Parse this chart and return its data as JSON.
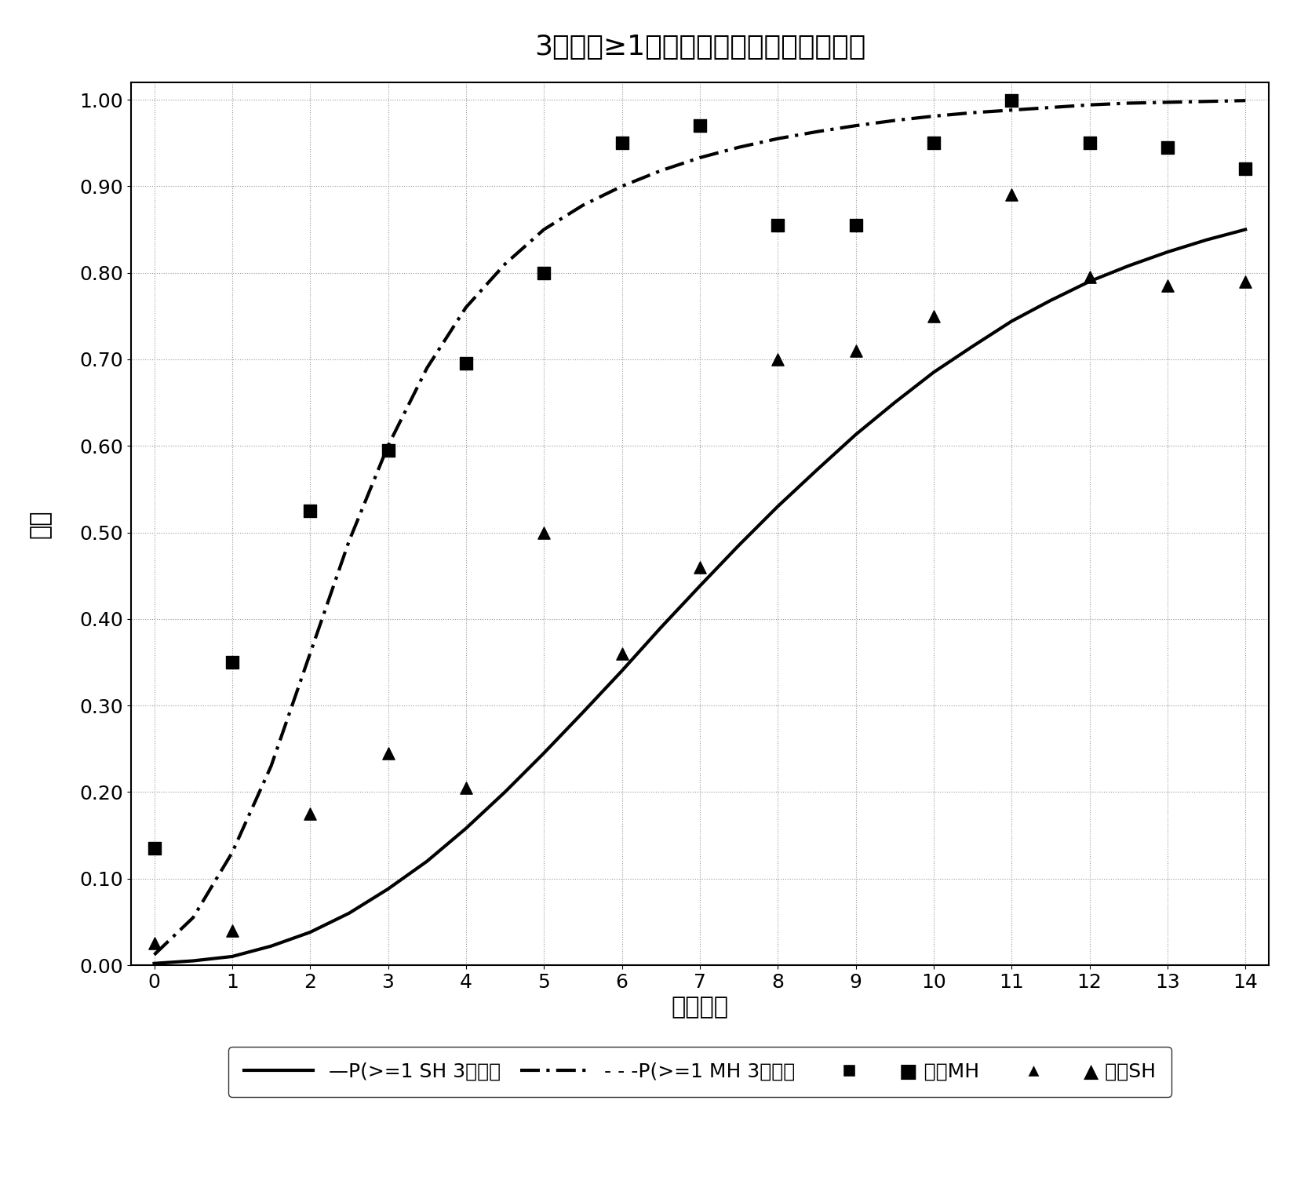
{
  "title": "3个月内≥1次中度或严重低血糖症的概率",
  "xlabel": "危险水平",
  "ylabel": "概率",
  "xlim": [
    -0.3,
    14.3
  ],
  "ylim": [
    0.0,
    1.02
  ],
  "xticks": [
    0,
    1,
    2,
    3,
    4,
    5,
    6,
    7,
    8,
    9,
    10,
    11,
    12,
    13,
    14
  ],
  "yticks": [
    0.0,
    0.1,
    0.2,
    0.3,
    0.4,
    0.5,
    0.6,
    0.7,
    0.8,
    0.9,
    1.0
  ],
  "curve_SH_x": [
    0,
    0.5,
    1,
    1.5,
    2,
    2.5,
    3,
    3.5,
    4,
    4.5,
    5,
    5.5,
    6,
    6.5,
    7,
    7.5,
    8,
    8.5,
    9,
    9.5,
    10,
    10.5,
    11,
    11.5,
    12,
    12.5,
    13,
    13.5,
    14
  ],
  "curve_SH_y": [
    0.002,
    0.005,
    0.01,
    0.022,
    0.038,
    0.06,
    0.088,
    0.12,
    0.158,
    0.2,
    0.245,
    0.292,
    0.34,
    0.39,
    0.438,
    0.485,
    0.53,
    0.572,
    0.613,
    0.65,
    0.685,
    0.715,
    0.744,
    0.768,
    0.79,
    0.808,
    0.824,
    0.838,
    0.85
  ],
  "curve_MH_x": [
    0,
    0.5,
    1,
    1.5,
    2,
    2.5,
    3,
    3.5,
    4,
    4.5,
    5,
    5.5,
    6,
    6.5,
    7,
    7.5,
    8,
    8.5,
    9,
    9.5,
    10,
    10.5,
    11,
    11.5,
    12,
    12.5,
    13,
    13.5,
    14
  ],
  "curve_MH_y": [
    0.012,
    0.055,
    0.13,
    0.23,
    0.36,
    0.49,
    0.6,
    0.69,
    0.76,
    0.81,
    0.85,
    0.878,
    0.9,
    0.918,
    0.933,
    0.945,
    0.955,
    0.963,
    0.97,
    0.976,
    0.981,
    0.985,
    0.988,
    0.991,
    0.994,
    0.996,
    0.997,
    0.998,
    0.999
  ],
  "exp_MH_x": [
    0,
    1,
    2,
    3,
    4,
    5,
    6,
    7,
    8,
    9,
    10,
    11,
    12,
    13,
    14
  ],
  "exp_MH_y": [
    0.135,
    0.35,
    0.525,
    0.595,
    0.695,
    0.8,
    0.95,
    0.97,
    0.855,
    0.855,
    0.95,
    0.999,
    0.95,
    0.945,
    0.92
  ],
  "exp_SH_x": [
    0,
    1,
    2,
    3,
    4,
    5,
    6,
    7,
    8,
    9,
    10,
    11,
    12,
    13,
    14
  ],
  "exp_SH_y": [
    0.025,
    0.04,
    0.175,
    0.245,
    0.205,
    0.5,
    0.36,
    0.46,
    0.7,
    0.71,
    0.75,
    0.89,
    0.795,
    0.785,
    0.79
  ],
  "background_color": "#ffffff",
  "line_color": "#000000",
  "grid_color": "#999999",
  "title_fontsize": 26,
  "axis_label_fontsize": 22,
  "tick_fontsize": 18,
  "legend_fontsize": 18
}
